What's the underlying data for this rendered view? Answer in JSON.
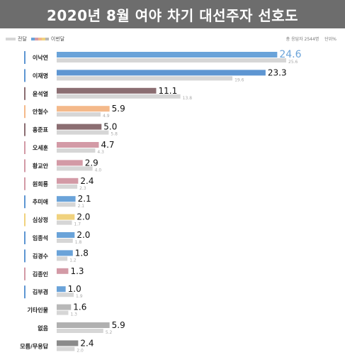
{
  "header": {
    "title": "2020년 8월 여야 차기 대선주자 선호도"
  },
  "legend": {
    "previous_label": "전달",
    "current_label": "이번달",
    "respondents": "총 응답자 2544명",
    "unit": "단위%"
  },
  "colors": {
    "title_bg": "#6d6d6d",
    "previous_bar": "#d6d6d6",
    "label_text": "#222222",
    "small_value_text": "#aaaaaa",
    "highlight_value_text": "#6aa3d9"
  },
  "chart_data": {
    "type": "bar",
    "orientation": "horizontal",
    "categories": [
      "이낙연",
      "이재명",
      "윤석열",
      "안철수",
      "홍준표",
      "오세훈",
      "황교안",
      "원희룡",
      "추미애",
      "심상정",
      "임종석",
      "김경수",
      "김종인",
      "김부겸",
      "기타인물",
      "없음",
      "모름/무응답"
    ],
    "series": [
      {
        "name": "이번달",
        "values": [
          24.6,
          23.3,
          11.1,
          5.9,
          5.0,
          4.7,
          2.9,
          2.4,
          2.1,
          2.0,
          2.0,
          1.8,
          1.3,
          1.0,
          1.6,
          5.9,
          2.4
        ],
        "labels": [
          "24.6",
          "23.3",
          "11.1",
          "5.9",
          "5.0",
          "4.7",
          "2.9",
          "2.4",
          "2.1",
          "2.0",
          "2.0",
          "1.8",
          "1.3",
          "1.0",
          "1.6",
          "5.9",
          "2.4"
        ],
        "colors": [
          "#6aa3d9",
          "#5e96d2",
          "#8b6e72",
          "#f4b98a",
          "#8b6e72",
          "#d39aa6",
          "#d39aa6",
          "#d39aa6",
          "#6aa3d9",
          "#f0d27e",
          "#6aa3d9",
          "#6aa3d9",
          "#d39aa6",
          "#6aa3d9",
          "#b8b8b8",
          "#b0b0b0",
          "#8a8a8a"
        ]
      },
      {
        "name": "전달",
        "values": [
          25.6,
          19.6,
          13.8,
          4.9,
          5.8,
          4.3,
          4.0,
          2.3,
          2.1,
          1.7,
          1.8,
          1.2,
          null,
          1.9,
          1.3,
          5.2,
          2.0
        ],
        "labels": [
          "25.6",
          "19.6",
          "13.8",
          "4.9",
          "5.8",
          "4.3",
          "4.0",
          "2.3",
          "2.1",
          "1.7",
          "1.8",
          "1.2",
          "",
          "1.9",
          "1.3",
          "5.2",
          "2.0"
        ]
      }
    ],
    "xlim": [
      0,
      25.6
    ],
    "label_marker_colors": [
      "#5e96d2",
      "#5e96d2",
      "#8b6e72",
      "#f4b98a",
      "#8b6e72",
      "#d39aa6",
      "#d39aa6",
      "#d39aa6",
      "#5e96d2",
      "#f0d27e",
      "#5e96d2",
      "#5e96d2",
      "#d39aa6",
      "#5e96d2",
      "",
      "",
      ""
    ]
  }
}
